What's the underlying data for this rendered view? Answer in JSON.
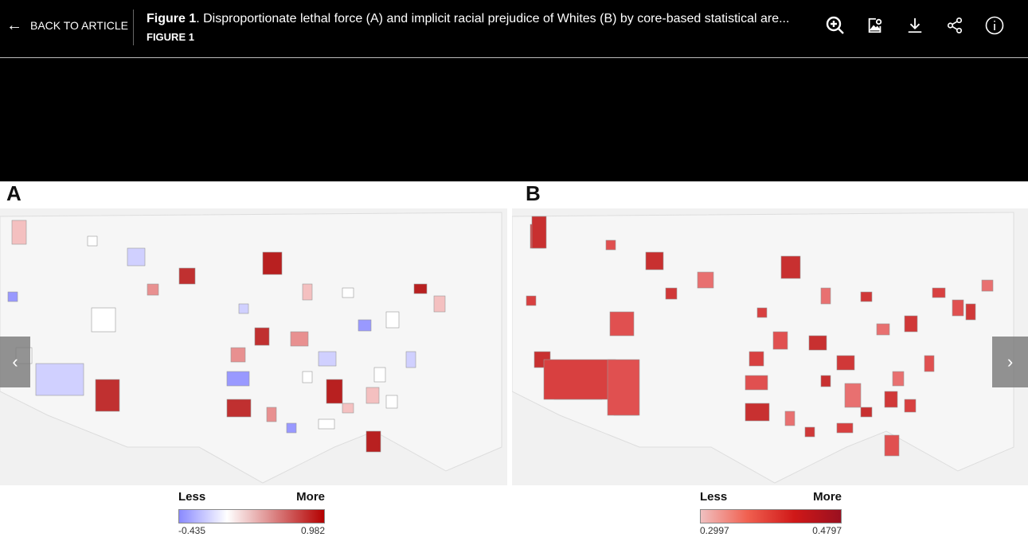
{
  "header": {
    "back_label": "BACK TO ARTICLE",
    "title_bold": "Figure 1",
    "title_rest": ". Disproportionate lethal force (A) and implicit racial prejudice of Whites (B) by core-based statistical are...",
    "subtitle": "FIGURE 1",
    "icons": [
      "zoom-in-icon",
      "image-info-icon",
      "download-icon",
      "share-icon",
      "info-icon"
    ]
  },
  "figure": {
    "panel_a": {
      "label": "A",
      "legend": {
        "less": "Less",
        "more": "More",
        "min": "-0.435",
        "max": "0.982",
        "colors": [
          "#8a8aff",
          "#ffffff",
          "#b40000"
        ]
      }
    },
    "panel_b": {
      "label": "B",
      "legend": {
        "less": "Less",
        "more": "More",
        "min": "0.2997",
        "max": "0.4797",
        "colors": [
          "#f0c0c0",
          "#f06050",
          "#d01818",
          "#9a1020"
        ]
      }
    }
  },
  "nav": {
    "prev": "‹",
    "next": "›"
  }
}
